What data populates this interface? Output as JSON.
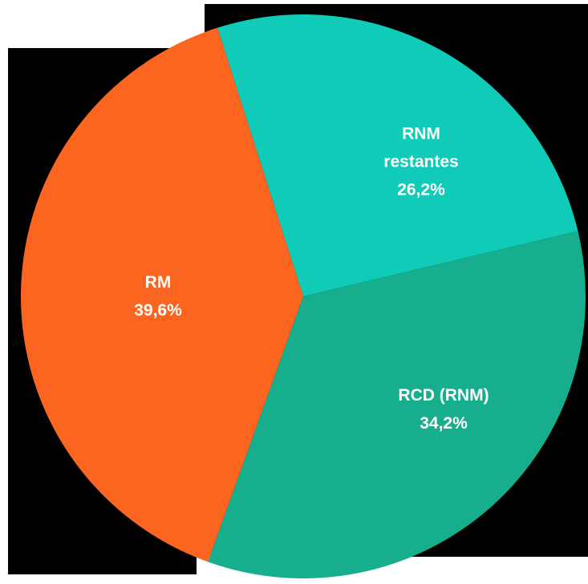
{
  "chart_data": {
    "type": "pie",
    "categories": [
      "RNM restantes",
      "RCD (RNM)",
      "RM"
    ],
    "values": [
      26.2,
      34.2,
      39.6
    ],
    "value_labels": [
      "26,2%",
      "34,2%",
      "39,6%"
    ],
    "colors": [
      "#10cbb8",
      "#17ae8e",
      "#fc6520"
    ]
  }
}
